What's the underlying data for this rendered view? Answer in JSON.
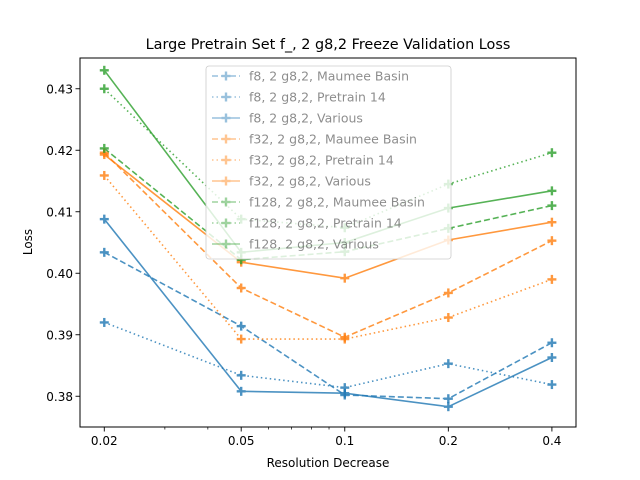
{
  "chart_data": {
    "type": "line",
    "title": "Large Pretrain Set f_, 2 g8,2 Freeze Validation Loss",
    "xlabel": "Resolution Decrease",
    "ylabel": "Loss",
    "xscale": "log",
    "x": [
      0.02,
      0.05,
      0.1,
      0.2,
      0.4
    ],
    "xticks": [
      "0.02",
      "0.05",
      "0.1",
      "0.2",
      "0.4"
    ],
    "ylim": [
      0.375,
      0.435
    ],
    "yticks": [
      "0.38",
      "0.39",
      "0.40",
      "0.41",
      "0.42",
      "0.43"
    ],
    "grid": false,
    "legend_position": "top-center",
    "series": [
      {
        "name": "f8, 2 g8,2, Maumee Basin",
        "color": "#1f77b4",
        "dash": "dashed",
        "values": [
          0.4034,
          0.3914,
          0.3802,
          0.3796,
          0.3887
        ]
      },
      {
        "name": "f8, 2 g8,2, Pretrain 14",
        "color": "#1f77b4",
        "dash": "dotted",
        "values": [
          0.392,
          0.3834,
          0.3814,
          0.3853,
          0.3819
        ]
      },
      {
        "name": "f8, 2 g8,2, Various",
        "color": "#1f77b4",
        "dash": "solid",
        "values": [
          0.4088,
          0.3808,
          0.3805,
          0.3783,
          0.3863
        ]
      },
      {
        "name": "f32, 2 g8,2, Maumee Basin",
        "color": "#ff7f0e",
        "dash": "dashed",
        "values": [
          0.4196,
          0.3976,
          0.3896,
          0.3968,
          0.4053
        ]
      },
      {
        "name": "f32, 2 g8,2, Pretrain 14",
        "color": "#ff7f0e",
        "dash": "dotted",
        "values": [
          0.4159,
          0.3893,
          0.3893,
          0.3928,
          0.399
        ]
      },
      {
        "name": "f32, 2 g8,2, Various",
        "color": "#ff7f0e",
        "dash": "solid",
        "values": [
          0.4193,
          0.4018,
          0.3992,
          0.4054,
          0.4083
        ]
      },
      {
        "name": "f128, 2 g8,2, Maumee Basin",
        "color": "#2ca02c",
        "dash": "dashed",
        "values": [
          0.4203,
          0.4022,
          0.4035,
          0.4073,
          0.411
        ]
      },
      {
        "name": "f128, 2 g8,2, Pretrain 14",
        "color": "#2ca02c",
        "dash": "dotted",
        "values": [
          0.43,
          0.4088,
          0.4074,
          0.4145,
          0.4196
        ]
      },
      {
        "name": "f128, 2 g8,2, Various",
        "color": "#2ca02c",
        "dash": "solid",
        "values": [
          0.433,
          0.4034,
          0.405,
          0.4106,
          0.4134
        ]
      }
    ]
  }
}
